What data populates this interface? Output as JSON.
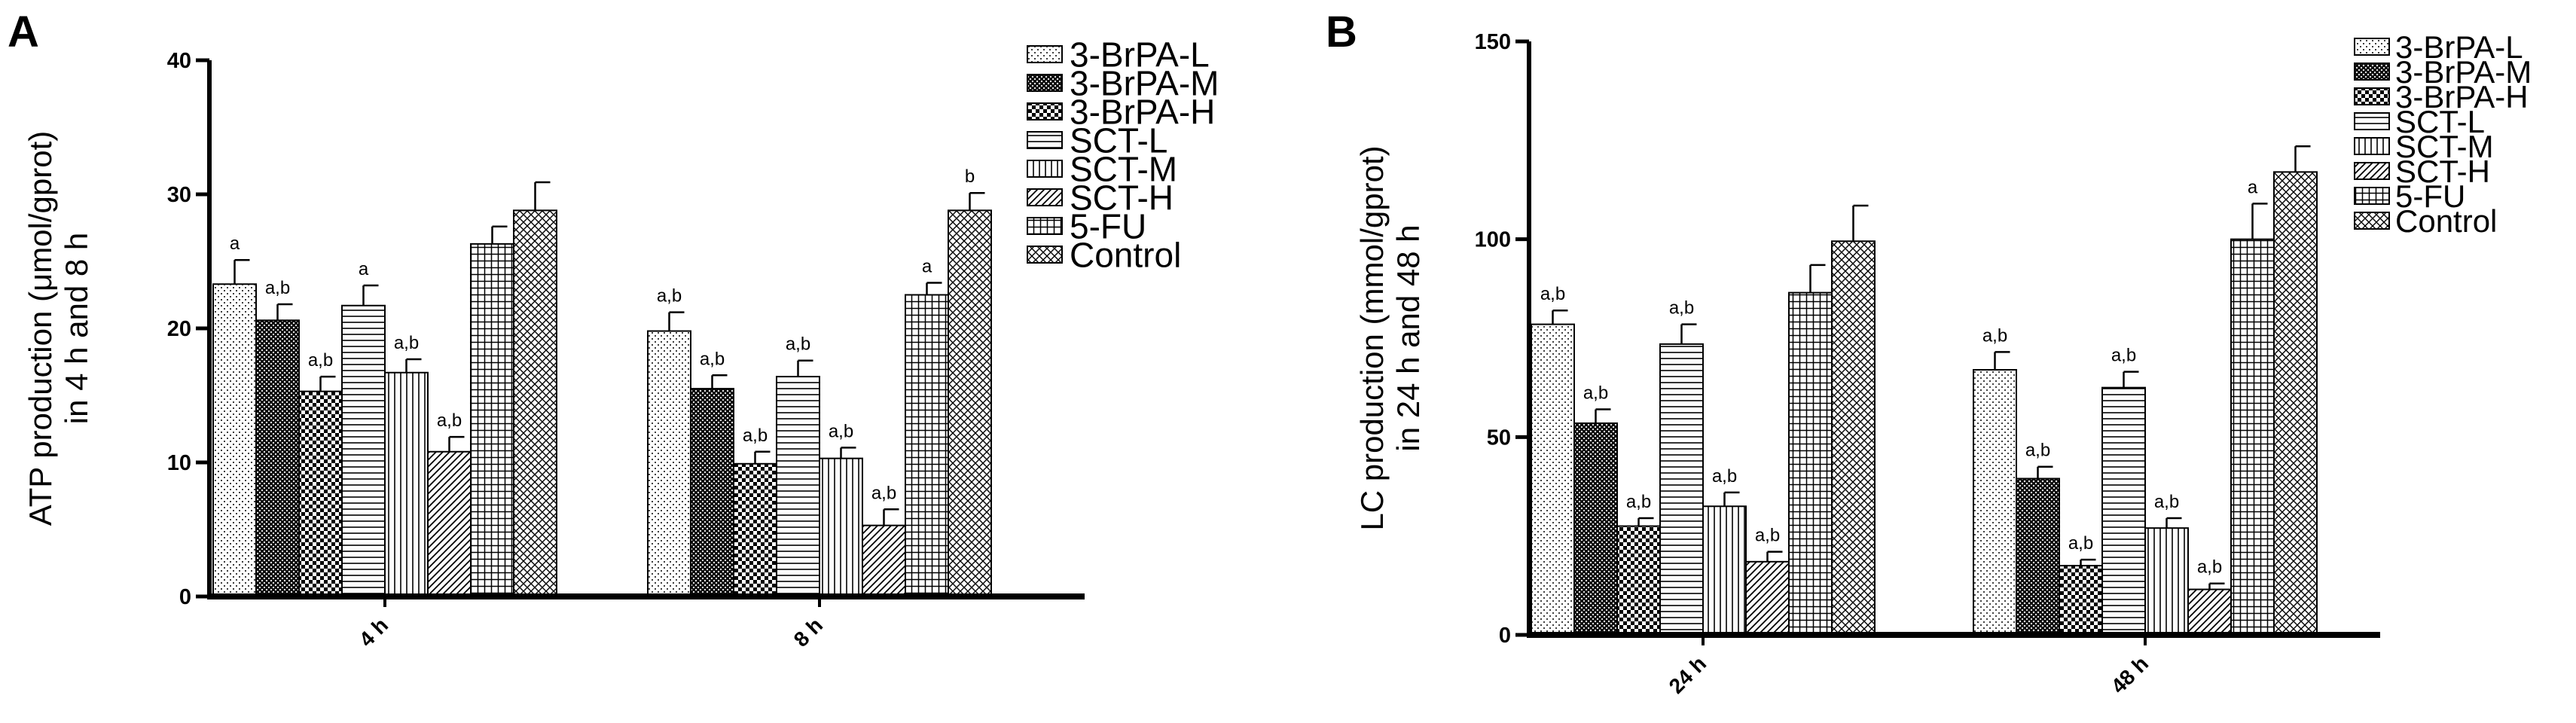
{
  "chart_data": [
    {
      "type": "bar",
      "panel_label": "A",
      "ylabel_line1": "ATP production (μmol/gprot)",
      "ylabel_line2": "in 4 h and 8 h",
      "xlabel": "",
      "ylim": [
        0,
        40
      ],
      "yticks": [
        "0",
        "10",
        "20",
        "30",
        "40"
      ],
      "categories": [
        "4 h",
        "8 h"
      ],
      "legend": [
        "3-BrPA-L",
        "3-BrPA-M",
        "3-BrPA-H",
        "SCT-L",
        "SCT-M",
        "SCT-H",
        "5-FU",
        "Control"
      ],
      "legend_position": "right",
      "series": [
        {
          "name": "3-BrPA-L",
          "pattern": "dots-fine",
          "values": [
            23.3,
            19.8
          ],
          "errors": [
            1.8,
            1.4
          ],
          "annotations": [
            "a",
            "a,b"
          ]
        },
        {
          "name": "3-BrPA-M",
          "pattern": "crosshatch-dense",
          "values": [
            20.6,
            15.5
          ],
          "errors": [
            1.2,
            1.0
          ],
          "annotations": [
            "a,b",
            "a,b"
          ]
        },
        {
          "name": "3-BrPA-H",
          "pattern": "checker",
          "values": [
            15.3,
            9.9
          ],
          "errors": [
            1.1,
            0.9
          ],
          "annotations": [
            "a,b",
            "a,b"
          ]
        },
        {
          "name": "SCT-L",
          "pattern": "horizontal-lines",
          "values": [
            21.7,
            16.4
          ],
          "errors": [
            1.5,
            1.2
          ],
          "annotations": [
            "a",
            "a,b"
          ]
        },
        {
          "name": "SCT-M",
          "pattern": "vertical-lines",
          "values": [
            16.7,
            10.3
          ],
          "errors": [
            1.0,
            0.8
          ],
          "annotations": [
            "a,b",
            "a,b"
          ]
        },
        {
          "name": "SCT-H",
          "pattern": "diagonal-lines",
          "values": [
            10.8,
            5.3
          ],
          "errors": [
            1.1,
            1.2
          ],
          "annotations": [
            "a,b",
            "a,b"
          ]
        },
        {
          "name": "5-FU",
          "pattern": "grid",
          "values": [
            26.3,
            22.5
          ],
          "errors": [
            1.3,
            0.9
          ],
          "annotations": [
            "",
            "a"
          ]
        },
        {
          "name": "Control",
          "pattern": "diagonal-crosshatch",
          "values": [
            28.8,
            28.8
          ],
          "errors": [
            2.1,
            1.3
          ],
          "annotations": [
            "",
            "b"
          ]
        }
      ]
    },
    {
      "type": "bar",
      "panel_label": "B",
      "ylabel_line1": "LC production (mmol/gprot)",
      "ylabel_line2": "in 24 h and 48 h",
      "xlabel": "",
      "ylim": [
        0,
        150
      ],
      "yticks": [
        "0",
        "50",
        "100",
        "150"
      ],
      "categories": [
        "24 h",
        "48 h"
      ],
      "legend": [
        "3-BrPA-L",
        "3-BrPA-M",
        "3-BrPA-H",
        "SCT-L",
        "SCT-M",
        "SCT-H",
        "5-FU",
        "Control"
      ],
      "legend_position": "right",
      "series": [
        {
          "name": "3-BrPA-L",
          "pattern": "dots-fine",
          "values": [
            78.5,
            67
          ],
          "errors": [
            3.5,
            4.5
          ],
          "annotations": [
            "a,b",
            "a,b"
          ]
        },
        {
          "name": "3-BrPA-M",
          "pattern": "crosshatch-dense",
          "values": [
            53.5,
            39.5
          ],
          "errors": [
            3.5,
            3.0
          ],
          "annotations": [
            "a,b",
            "a,b"
          ]
        },
        {
          "name": "3-BrPA-H",
          "pattern": "checker",
          "values": [
            27.5,
            17.5
          ],
          "errors": [
            2.0,
            1.5
          ],
          "annotations": [
            "a,b",
            "a,b"
          ]
        },
        {
          "name": "SCT-L",
          "pattern": "horizontal-lines",
          "values": [
            73.5,
            62.5
          ],
          "errors": [
            5.0,
            4.0
          ],
          "annotations": [
            "a,b",
            "a,b"
          ]
        },
        {
          "name": "SCT-M",
          "pattern": "vertical-lines",
          "values": [
            32.5,
            27
          ],
          "errors": [
            3.5,
            2.5
          ],
          "annotations": [
            "a,b",
            "a,b"
          ]
        },
        {
          "name": "SCT-H",
          "pattern": "diagonal-lines",
          "values": [
            18.5,
            11.5
          ],
          "errors": [
            2.5,
            1.5
          ],
          "annotations": [
            "a,b",
            "a,b"
          ]
        },
        {
          "name": "5-FU",
          "pattern": "grid",
          "values": [
            86.5,
            100
          ],
          "errors": [
            7.0,
            9.0
          ],
          "annotations": [
            "",
            "a"
          ]
        },
        {
          "name": "Control",
          "pattern": "diagonal-crosshatch",
          "values": [
            99.5,
            117
          ],
          "errors": [
            9.0,
            6.5
          ],
          "annotations": [
            "",
            ""
          ]
        }
      ]
    }
  ]
}
